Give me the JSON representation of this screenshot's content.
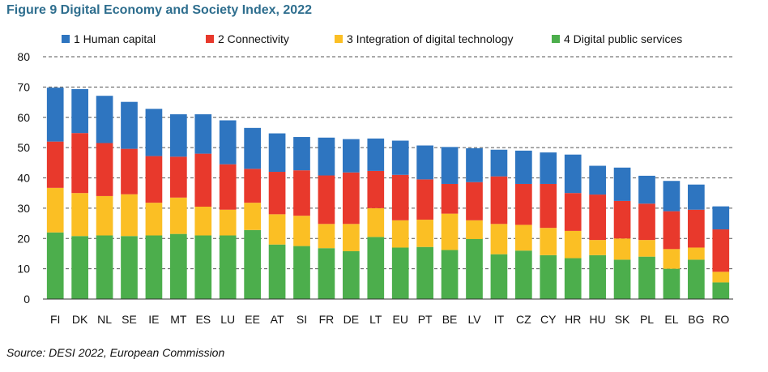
{
  "figure": {
    "title": "Figure 9 Digital Economy and Society Index, 2022",
    "source": "Source: DESI 2022, European Commission"
  },
  "chart_data": {
    "type": "bar",
    "stacked": true,
    "title": "Figure 9 Digital Economy and Society Index, 2022",
    "xlabel": "",
    "ylabel": "",
    "ylim": [
      0,
      80
    ],
    "yticks": [
      0,
      10,
      20,
      30,
      40,
      50,
      60,
      70,
      80
    ],
    "grid": "horizontal dashed",
    "legend": "top",
    "categories": [
      "FI",
      "DK",
      "NL",
      "SE",
      "IE",
      "MT",
      "ES",
      "LU",
      "EE",
      "AT",
      "SI",
      "FR",
      "DE",
      "LT",
      "EU",
      "PT",
      "BE",
      "LV",
      "IT",
      "CZ",
      "CY",
      "HR",
      "HU",
      "SK",
      "PL",
      "EL",
      "BG",
      "RO"
    ],
    "series": [
      {
        "name": "4 Digital public services",
        "color": "#4cae4c",
        "values": [
          22.0,
          20.8,
          21.0,
          20.8,
          21.0,
          21.5,
          21.0,
          21.0,
          22.8,
          18.0,
          17.5,
          16.8,
          15.8,
          20.5,
          17.0,
          17.2,
          16.2,
          19.8,
          14.8,
          16.0,
          14.5,
          13.5,
          14.5,
          13.0,
          14.0,
          10.0,
          13.0,
          5.5
        ]
      },
      {
        "name": "3 Integration of digital technology",
        "color": "#fbbf24",
        "values": [
          14.7,
          14.2,
          13.0,
          13.8,
          10.8,
          12.0,
          9.5,
          8.5,
          9.0,
          10.0,
          10.0,
          8.0,
          9.0,
          9.5,
          9.0,
          9.0,
          12.0,
          6.2,
          10.0,
          8.5,
          9.0,
          9.0,
          5.0,
          7.0,
          5.5,
          6.5,
          4.0,
          3.5
        ]
      },
      {
        "name": "2 Connectivity",
        "color": "#e8392c",
        "values": [
          15.3,
          19.8,
          17.5,
          15.0,
          15.4,
          13.5,
          17.5,
          15.0,
          11.2,
          14.0,
          15.0,
          16.0,
          17.0,
          12.3,
          15.0,
          13.3,
          9.8,
          12.6,
          15.7,
          13.5,
          14.5,
          12.5,
          15.0,
          12.4,
          12.0,
          12.5,
          12.5,
          14.0
        ]
      },
      {
        "name": "1 Human capital",
        "color": "#2e75c0",
        "values": [
          17.8,
          14.5,
          15.6,
          15.5,
          15.6,
          14.0,
          13.0,
          14.5,
          13.5,
          12.7,
          11.0,
          12.5,
          11.0,
          10.7,
          11.3,
          11.2,
          12.2,
          11.2,
          8.8,
          11.0,
          10.4,
          12.7,
          9.5,
          11.0,
          9.2,
          10.0,
          8.3,
          7.6
        ]
      }
    ]
  }
}
